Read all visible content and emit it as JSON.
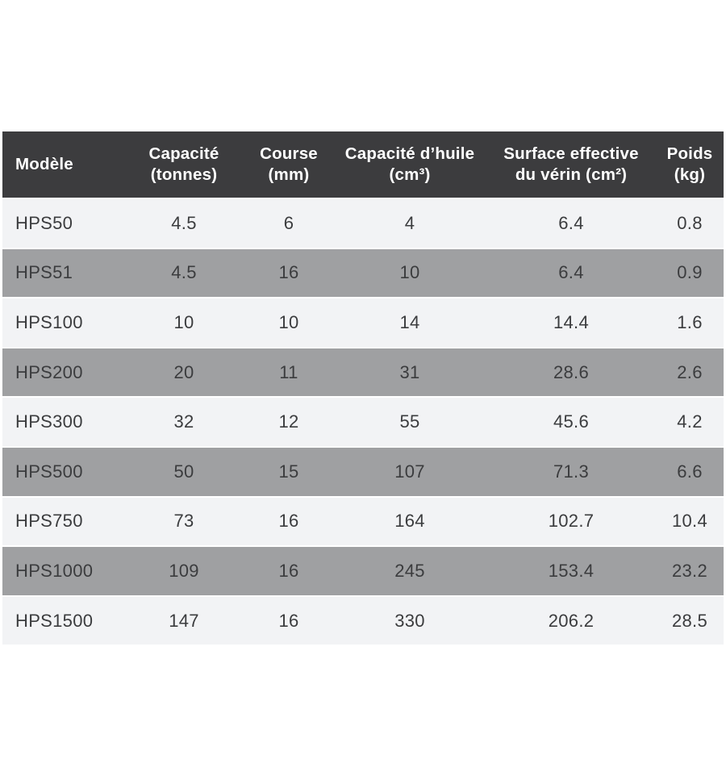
{
  "colors": {
    "header_bg": "#3c3c3e",
    "header_text": "#ffffff",
    "row_light": "#f2f3f5",
    "row_dark": "#9fa0a2",
    "cell_text": "#3b3c3e",
    "separator": "#ffffff",
    "page_bg": "#ffffff"
  },
  "chart_data": {
    "type": "table",
    "title": "",
    "columns": [
      "Modèle",
      "Capacité (tonnes)",
      "Course (mm)",
      "Capacité d’huile (cm³)",
      "Surface effective du vérin (cm²)",
      "Poids (kg)"
    ],
    "rows": [
      [
        "HPS50",
        "4.5",
        "6",
        "4",
        "6.4",
        "0.8"
      ],
      [
        "HPS51",
        "4.5",
        "16",
        "10",
        "6.4",
        "0.9"
      ],
      [
        "HPS100",
        "10",
        "10",
        "14",
        "14.4",
        "1.6"
      ],
      [
        "HPS200",
        "20",
        "11",
        "31",
        "28.6",
        "2.6"
      ],
      [
        "HPS300",
        "32",
        "12",
        "55",
        "45.6",
        "4.2"
      ],
      [
        "HPS500",
        "50",
        "15",
        "107",
        "71.3",
        "6.6"
      ],
      [
        "HPS750",
        "73",
        "16",
        "164",
        "102.7",
        "10.4"
      ],
      [
        "HPS1000",
        "109",
        "16",
        "245",
        "153.4",
        "23.2"
      ],
      [
        "HPS1500",
        "147",
        "16",
        "330",
        "206.2",
        "28.5"
      ]
    ]
  },
  "table": {
    "header_labels": [
      "Modèle",
      "Capacité\n(tonnes)",
      "Course\n(mm)",
      "Capacité d’huile\n(cm³)",
      "Surface effective\ndu vérin (cm²)",
      "Poids\n(kg)"
    ]
  }
}
